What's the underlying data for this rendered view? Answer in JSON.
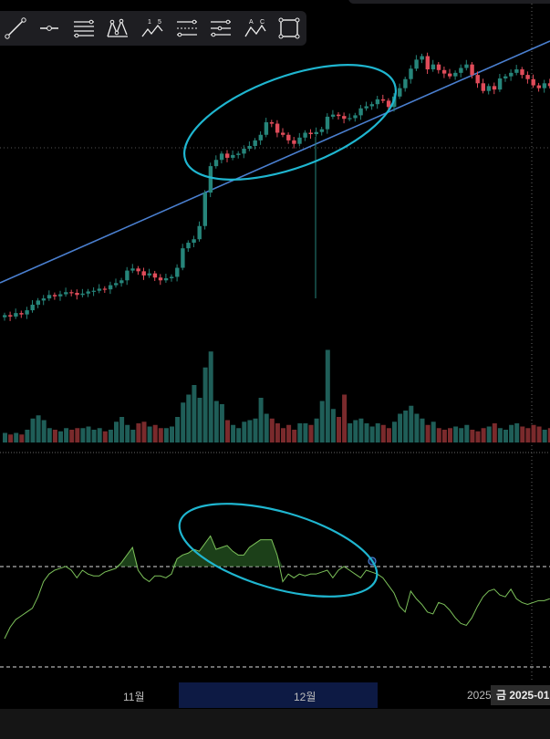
{
  "toolbar": {
    "tools": [
      {
        "icon": "trendline-icon"
      },
      {
        "icon": "horizontal-ray-icon"
      },
      {
        "icon": "parallel-lines-icon"
      },
      {
        "icon": "pitchfork-icon"
      },
      {
        "icon": "elliott-wave-icon",
        "text": "1 5"
      },
      {
        "icon": "regression-channel-icon"
      },
      {
        "icon": "fib-lines-icon"
      },
      {
        "icon": "abcd-pattern-icon",
        "text": "A C"
      },
      {
        "icon": "rectangle-icon"
      }
    ]
  },
  "x_axis": {
    "labels": [
      "11월",
      "12월",
      "2025"
    ],
    "crosshair_badge": "금 2025-01"
  },
  "colors": {
    "up": "#26857a",
    "down": "#e04c5a",
    "volume_up": "#1f5e58",
    "volume_down": "#7a2a2c",
    "trendline": "#4a7fcf",
    "annotation": "#1fb6d0",
    "oscillator": "#7cc15a"
  },
  "chart_data": [
    {
      "type": "candlestick",
      "description_series": "price",
      "closes": [
        18.6,
        18.4,
        18.9,
        18.7,
        19.3,
        20.1,
        20.7,
        21.0,
        21.5,
        21.3,
        21.6,
        21.9,
        21.8,
        21.5,
        21.7,
        22.0,
        22.1,
        22.4,
        22.3,
        22.9,
        23.2,
        23.6,
        25.0,
        25.3,
        24.9,
        24.3,
        24.6,
        24.0,
        23.6,
        23.9,
        24.1,
        25.4,
        28.2,
        29.0,
        29.5,
        31.4,
        36.2,
        40.0,
        40.9,
        41.8,
        41.2,
        41.6,
        41.8,
        42.5,
        42.9,
        43.7,
        44.5,
        46.3,
        46.1,
        44.8,
        44.5,
        43.7,
        43.2,
        44.1,
        44.8,
        44.6,
        44.9,
        45.3,
        47.1,
        47.4,
        47.2,
        46.8,
        46.9,
        47.3,
        48.3,
        48.6,
        48.9,
        49.6,
        49.4,
        48.5,
        50.0,
        51.2,
        52.5,
        54.0,
        55.3,
        55.8,
        53.9,
        54.6,
        53.8,
        53.3,
        52.9,
        53.4,
        54.1,
        54.6,
        53.1,
        51.9,
        50.8,
        51.5,
        51.0,
        52.6,
        52.9,
        53.4,
        53.9,
        53.1,
        52.5,
        51.6,
        51.2,
        51.9,
        51.5
      ]
    },
    {
      "type": "bar",
      "description_series": "volume",
      "values": [
        6,
        5,
        6,
        5,
        8,
        15,
        17,
        14,
        9,
        8,
        7,
        9,
        8,
        9,
        9,
        10,
        8,
        9,
        7,
        8,
        13,
        16,
        11,
        8,
        12,
        13,
        10,
        11,
        9,
        9,
        10,
        16,
        25,
        30,
        36,
        28,
        47,
        57,
        26,
        24,
        14,
        11,
        9,
        13,
        14,
        15,
        28,
        18,
        15,
        12,
        9,
        11,
        8,
        12,
        12,
        11,
        15,
        26,
        58,
        21,
        16,
        30,
        12,
        14,
        15,
        12,
        10,
        12,
        11,
        9,
        13,
        18,
        20,
        23,
        18,
        15,
        11,
        13,
        9,
        8,
        9,
        10,
        9,
        11,
        8,
        7,
        9,
        10,
        12,
        9,
        8,
        11,
        12,
        10,
        9,
        11,
        10,
        8,
        9
      ]
    },
    {
      "type": "area",
      "description_series": "oscillator",
      "values": [
        30,
        36,
        40,
        42,
        44,
        46,
        52,
        60,
        64,
        66,
        67,
        68,
        66,
        62,
        66,
        64,
        63,
        63,
        65,
        66,
        67,
        70,
        74,
        78,
        66,
        62,
        60,
        63,
        63,
        62,
        64,
        72,
        74,
        75,
        77,
        76,
        80,
        84,
        77,
        78,
        79,
        76,
        74,
        74,
        78,
        80,
        82,
        82,
        82,
        74,
        60,
        64,
        62,
        64,
        63,
        64,
        64,
        65,
        66,
        62,
        66,
        68,
        66,
        64,
        62,
        66,
        65,
        64,
        62,
        58,
        54,
        47,
        44,
        55,
        51,
        48,
        44,
        43,
        49,
        48,
        45,
        41,
        38,
        37,
        41,
        47,
        52,
        55,
        56,
        53,
        52,
        56,
        51,
        49,
        48,
        49,
        50,
        50,
        51
      ]
    }
  ]
}
